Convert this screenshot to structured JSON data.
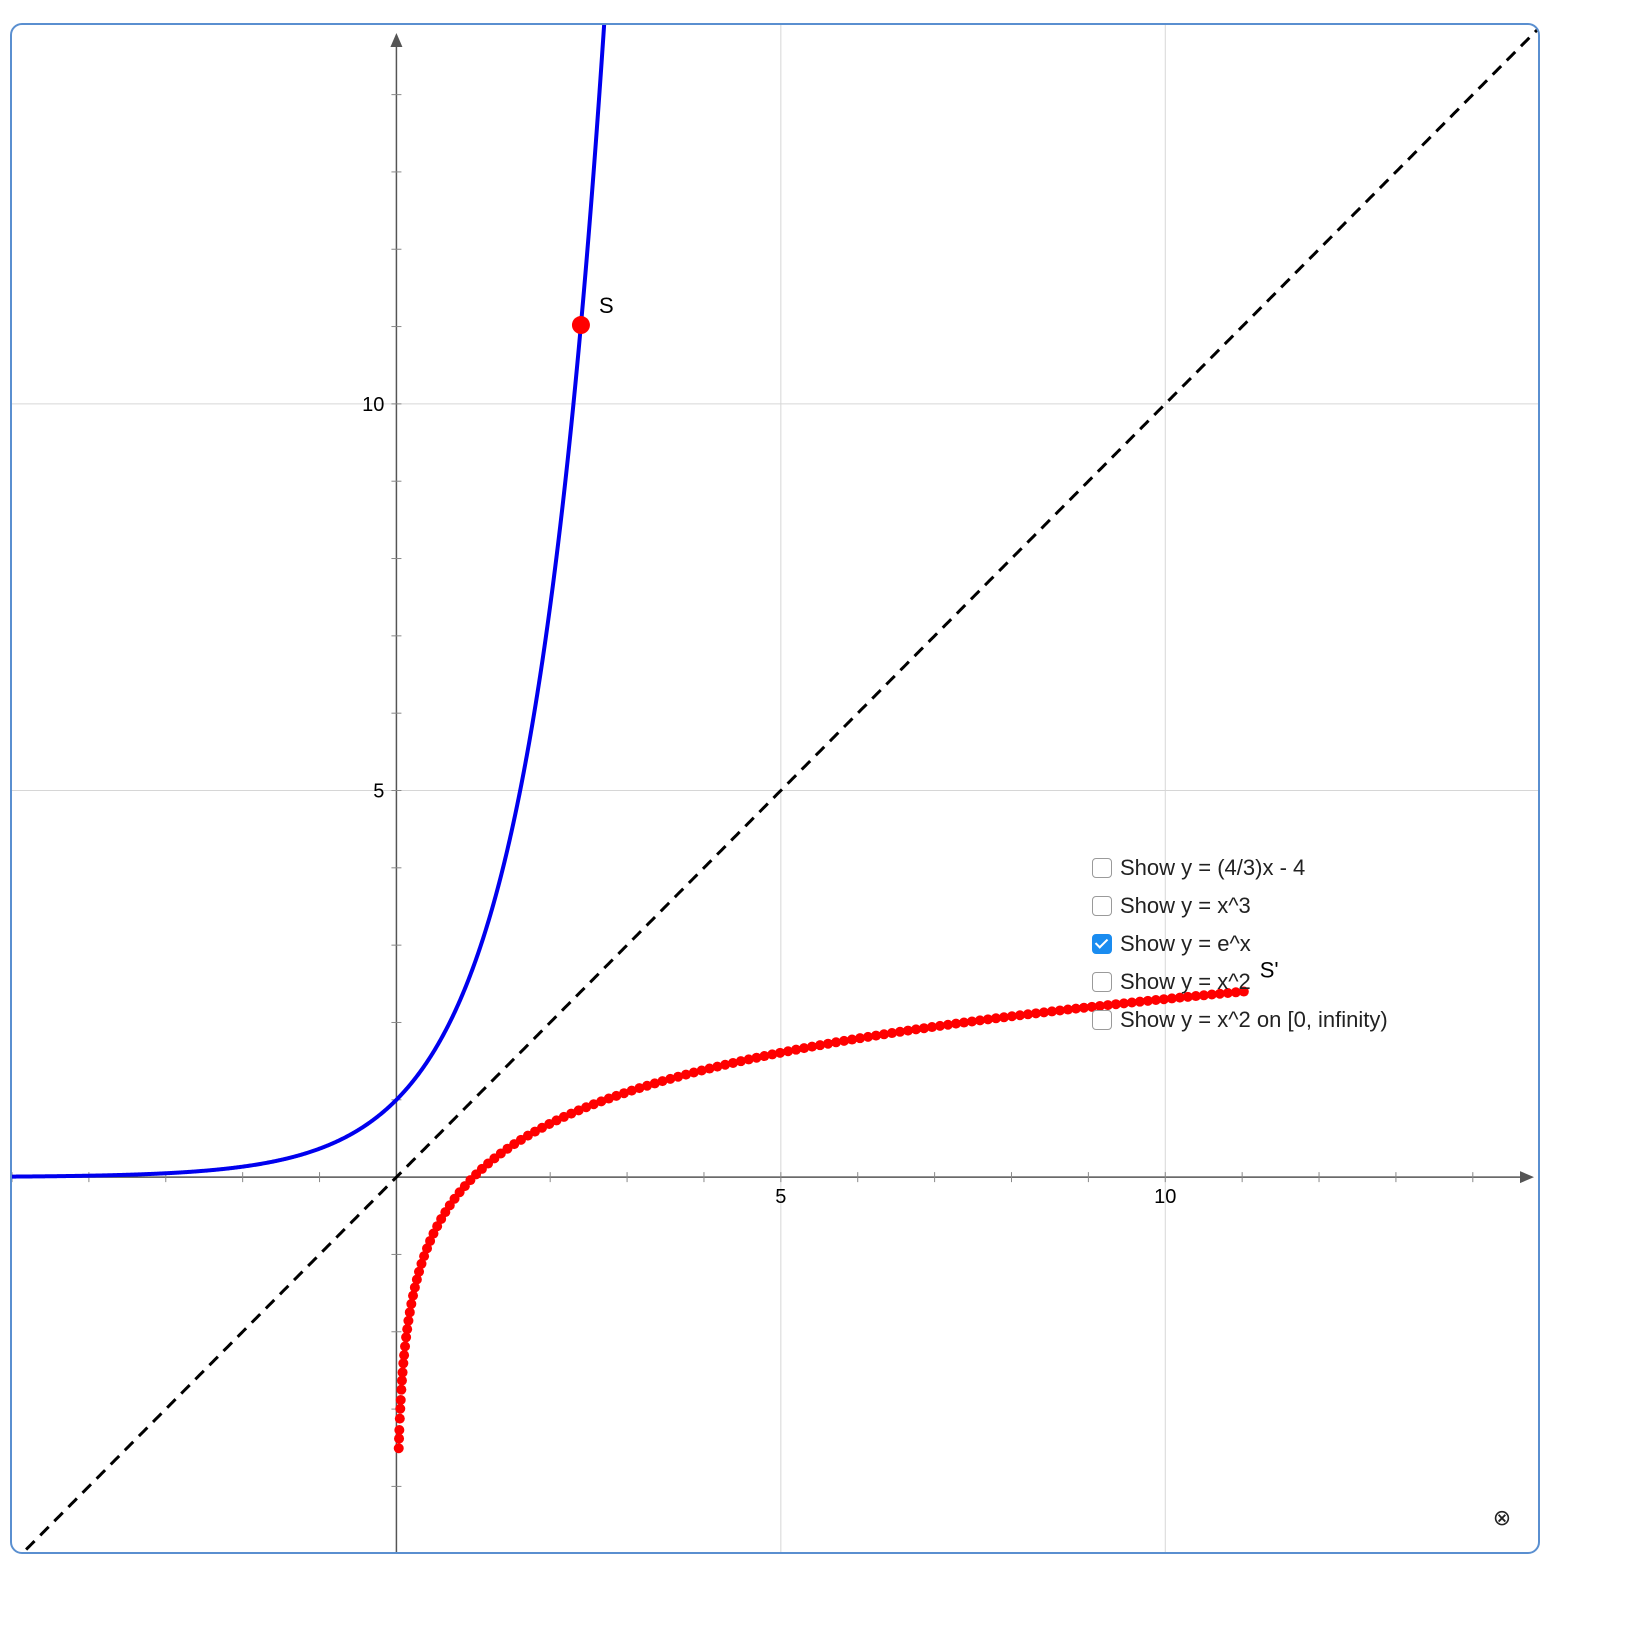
{
  "chart_data": {
    "type": "line",
    "title": "",
    "xlabel": "",
    "ylabel": "",
    "xlim": [
      -5,
      14.9
    ],
    "ylim": [
      -4.9,
      14.9
    ],
    "grid": true,
    "x_ticks": [
      5,
      10
    ],
    "y_ticks": [
      5,
      10
    ],
    "series": [
      {
        "function": "exp",
        "color": "#0000ee",
        "style": "solid",
        "domain": [
          -5,
          2.73
        ]
      },
      {
        "function": "identity",
        "color": "#000000",
        "style": "dashed",
        "domain": [
          -5,
          14.9
        ]
      },
      {
        "function": "ln",
        "color": "#ff0000",
        "style": "dotted",
        "domain": [
          0.03,
          11.04
        ]
      }
    ],
    "points": [
      {
        "label": "S",
        "x": 2.4,
        "y": 11.02,
        "color": "#ff0000"
      },
      {
        "label": "S'",
        "x": 11.02,
        "y": 2.4,
        "color": "#ff0000"
      }
    ]
  },
  "options": [
    {
      "label": "Show y = (4/3)x - 4",
      "checked": false
    },
    {
      "label": "Show y = x^3",
      "checked": false
    },
    {
      "label": "Show y = e^x",
      "checked": true
    },
    {
      "label": "Show y = x^2",
      "checked": false
    },
    {
      "label": "Show y = x^2 on [0, infinity)",
      "checked": false
    }
  ],
  "reset_icon": "⊗"
}
